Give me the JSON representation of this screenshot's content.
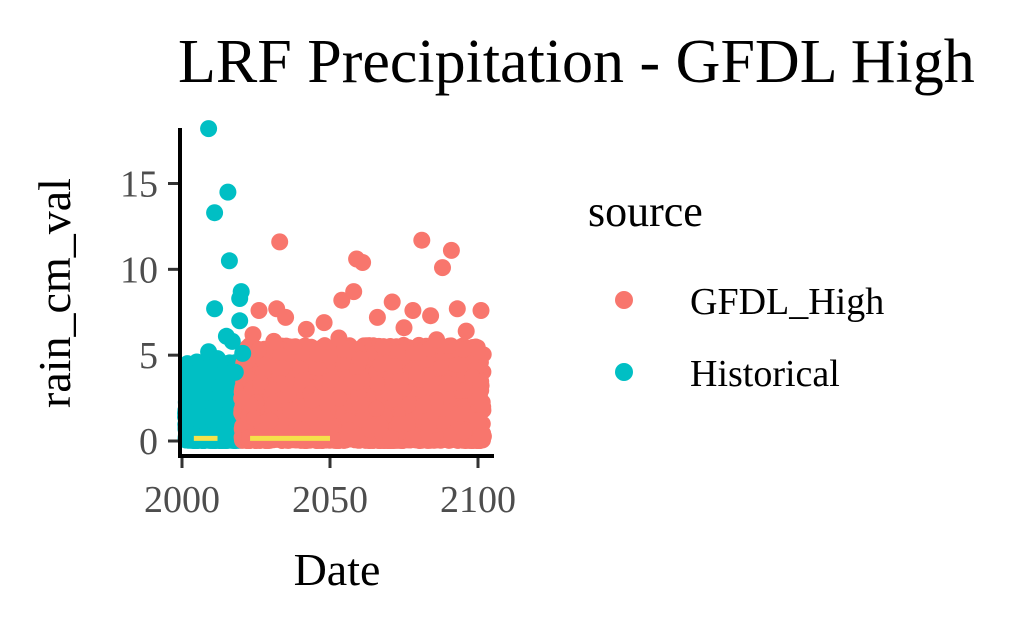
{
  "chart_data": {
    "type": "scatter",
    "title": "LRF Precipitation - GFDL High",
    "xlabel": "Date",
    "ylabel": "rain_cm_val",
    "xlim": [
      2000,
      2100
    ],
    "ylim": [
      0,
      18
    ],
    "x_ticks": [
      2000,
      2050,
      2100
    ],
    "x_tick_labels": [
      "2000",
      "2050",
      "2100"
    ],
    "y_ticks": [
      0,
      5,
      10,
      15
    ],
    "y_tick_labels": [
      "0",
      "5",
      "10",
      "15"
    ],
    "grid": false,
    "legend": {
      "title": "source",
      "position": "right",
      "entries": [
        {
          "label": "GFDL_High",
          "color": "#F8766D"
        },
        {
          "label": "Historical",
          "color": "#00BFC4"
        }
      ]
    },
    "series": [
      {
        "name": "Historical",
        "color": "#00BFC4",
        "x_range": [
          2001,
          2020
        ],
        "points": [
          {
            "x": 2009,
            "y": 18.2
          },
          {
            "x": 2015.5,
            "y": 14.5
          },
          {
            "x": 2011,
            "y": 13.3
          },
          {
            "x": 2016,
            "y": 10.5
          },
          {
            "x": 2020,
            "y": 8.7
          },
          {
            "x": 2019.5,
            "y": 8.3
          },
          {
            "x": 2011,
            "y": 7.7
          },
          {
            "x": 2019.5,
            "y": 7.0
          },
          {
            "x": 2015,
            "y": 6.1
          },
          {
            "x": 2017,
            "y": 5.8
          },
          {
            "x": 2009,
            "y": 5.2
          },
          {
            "x": 2020.5,
            "y": 5.1
          },
          {
            "x": 2005,
            "y": 4.6
          },
          {
            "x": 2012,
            "y": 4.8
          },
          {
            "x": 2003,
            "y": 3.9
          },
          {
            "x": 2007,
            "y": 4.2
          },
          {
            "x": 2018,
            "y": 4.0
          },
          {
            "x": 2002,
            "y": 3.0
          },
          {
            "x": 2014,
            "y": 3.5
          },
          {
            "x": 2006,
            "y": 2.8
          }
        ]
      },
      {
        "name": "GFDL_High",
        "color": "#F8766D",
        "x_range": [
          2020,
          2102
        ],
        "points": [
          {
            "x": 2033,
            "y": 11.6
          },
          {
            "x": 2081,
            "y": 11.7
          },
          {
            "x": 2091,
            "y": 11.1
          },
          {
            "x": 2059,
            "y": 10.6
          },
          {
            "x": 2061,
            "y": 10.4
          },
          {
            "x": 2088,
            "y": 10.1
          },
          {
            "x": 2058,
            "y": 8.7
          },
          {
            "x": 2054,
            "y": 8.2
          },
          {
            "x": 2071,
            "y": 8.1
          },
          {
            "x": 2032,
            "y": 7.7
          },
          {
            "x": 2026,
            "y": 7.6
          },
          {
            "x": 2078,
            "y": 7.6
          },
          {
            "x": 2093,
            "y": 7.7
          },
          {
            "x": 2101,
            "y": 7.6
          },
          {
            "x": 2035,
            "y": 7.2
          },
          {
            "x": 2048,
            "y": 6.9
          },
          {
            "x": 2066,
            "y": 7.2
          },
          {
            "x": 2084,
            "y": 7.3
          },
          {
            "x": 2042,
            "y": 6.5
          },
          {
            "x": 2075,
            "y": 6.6
          },
          {
            "x": 2096,
            "y": 6.4
          },
          {
            "x": 2024,
            "y": 6.2
          },
          {
            "x": 2053,
            "y": 6.0
          },
          {
            "x": 2086,
            "y": 5.9
          },
          {
            "x": 2031,
            "y": 5.8
          },
          {
            "x": 2068,
            "y": 5.5
          }
        ]
      },
      {
        "name": "",
        "type": "segments",
        "color": "#F5E24A",
        "segments": [
          {
            "x0": 2004,
            "x1": 2012,
            "y": 0.15
          },
          {
            "x0": 2023,
            "x1": 2050,
            "y": 0.15
          }
        ]
      }
    ]
  }
}
